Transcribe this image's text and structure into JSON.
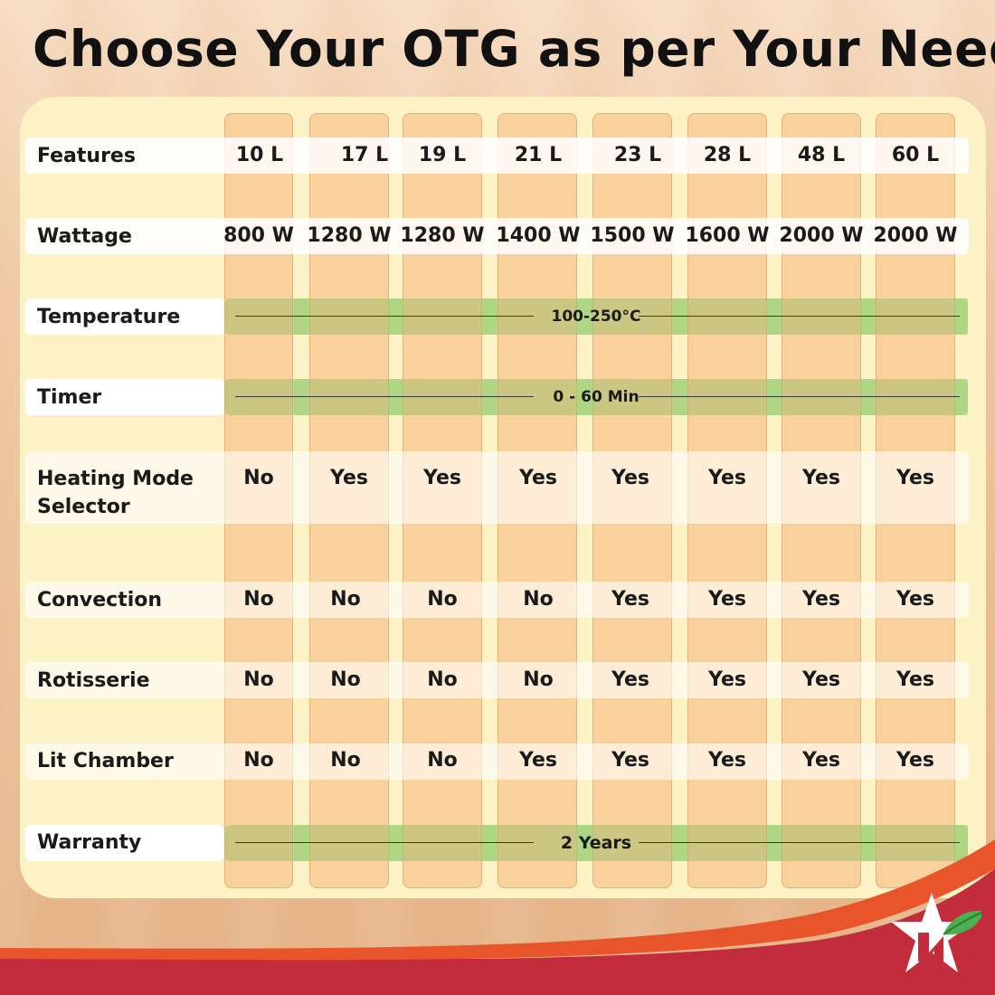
{
  "title": "Choose Your OTG as per Your Need",
  "header": {
    "label": "Features",
    "capacities": [
      "10 L",
      "17 L",
      "19 L",
      "21 L",
      "23 L",
      "28 L",
      "48 L",
      "60 L"
    ]
  },
  "rows": [
    {
      "label": "Wattage",
      "values": [
        "800 W",
        "1280 W",
        "1280 W",
        "1400 W",
        "1500 W",
        "1600 W",
        "2000 W",
        "2000 W"
      ]
    },
    {
      "label": "Temperature",
      "span": "100-250°C"
    },
    {
      "label": "Timer",
      "span": "0 - 60 Min"
    },
    {
      "label_line1": "Heating Mode",
      "label_line2": "Selector",
      "values": [
        "No",
        "Yes",
        "Yes",
        "Yes",
        "Yes",
        "Yes",
        "Yes",
        "Yes"
      ]
    },
    {
      "label": "Convection",
      "values": [
        "No",
        "No",
        "No",
        "No",
        "Yes",
        "Yes",
        "Yes",
        "Yes"
      ]
    },
    {
      "label": "Rotisserie",
      "values": [
        "No",
        "No",
        "No",
        "No",
        "Yes",
        "Yes",
        "Yes",
        "Yes"
      ]
    },
    {
      "label": "Lit Chamber",
      "values": [
        "No",
        "No",
        "No",
        "Yes",
        "Yes",
        "Yes",
        "Yes",
        "Yes"
      ]
    },
    {
      "label": "Warranty",
      "span": "2 Years"
    }
  ],
  "colors": {
    "brand_red": "#c22c3c",
    "accent_orange": "#e8552a",
    "leaf_green": "#4caf50"
  },
  "icons": {
    "logo": "star-leaf-logo"
  }
}
